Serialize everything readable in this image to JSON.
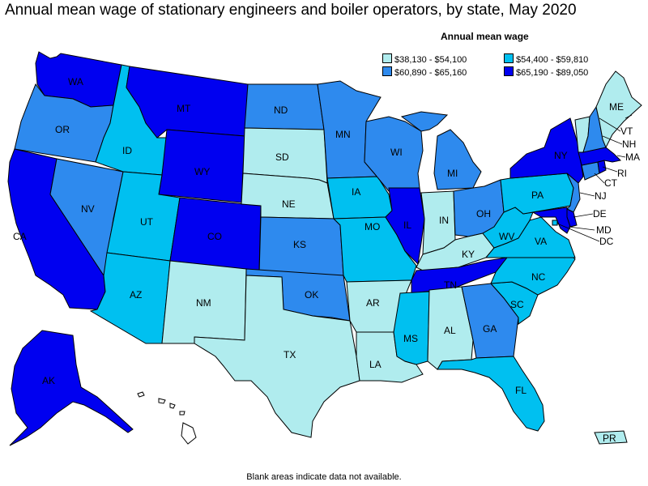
{
  "title": "Annual mean wage of stationary engineers and boiler operators, by state, May 2020",
  "legend": {
    "title": "Annual mean wage",
    "bins": [
      {
        "label": "$38,130 - $54,100",
        "color": "#b0ecee"
      },
      {
        "label": "$54,400 - $59,810",
        "color": "#00c0f0"
      },
      {
        "label": "$60,890 - $65,160",
        "color": "#2e8aee"
      },
      {
        "label": "$65,190 - $89,050",
        "color": "#0000f0"
      }
    ]
  },
  "footnote": "Blank areas indicate data not available.",
  "states": [
    {
      "abbr": "WA",
      "bin": 3
    },
    {
      "abbr": "OR",
      "bin": 2
    },
    {
      "abbr": "CA",
      "bin": 3
    },
    {
      "abbr": "NV",
      "bin": 2
    },
    {
      "abbr": "ID",
      "bin": 1
    },
    {
      "abbr": "MT",
      "bin": 3
    },
    {
      "abbr": "WY",
      "bin": 3
    },
    {
      "abbr": "UT",
      "bin": 1
    },
    {
      "abbr": "AZ",
      "bin": 1
    },
    {
      "abbr": "CO",
      "bin": 3
    },
    {
      "abbr": "NM",
      "bin": 0
    },
    {
      "abbr": "ND",
      "bin": 2
    },
    {
      "abbr": "SD",
      "bin": 0
    },
    {
      "abbr": "NE",
      "bin": 0
    },
    {
      "abbr": "KS",
      "bin": 2
    },
    {
      "abbr": "OK",
      "bin": 2
    },
    {
      "abbr": "TX",
      "bin": 0
    },
    {
      "abbr": "MN",
      "bin": 2
    },
    {
      "abbr": "IA",
      "bin": 1
    },
    {
      "abbr": "MO",
      "bin": 1
    },
    {
      "abbr": "AR",
      "bin": 0
    },
    {
      "abbr": "LA",
      "bin": 0
    },
    {
      "abbr": "WI",
      "bin": 2
    },
    {
      "abbr": "IL",
      "bin": 3
    },
    {
      "abbr": "MI",
      "bin": 2
    },
    {
      "abbr": "IN",
      "bin": 0
    },
    {
      "abbr": "OH",
      "bin": 2
    },
    {
      "abbr": "KY",
      "bin": 0
    },
    {
      "abbr": "TN",
      "bin": 3
    },
    {
      "abbr": "MS",
      "bin": 1
    },
    {
      "abbr": "AL",
      "bin": 0
    },
    {
      "abbr": "GA",
      "bin": 2
    },
    {
      "abbr": "FL",
      "bin": 1
    },
    {
      "abbr": "SC",
      "bin": 1
    },
    {
      "abbr": "NC",
      "bin": 1
    },
    {
      "abbr": "VA",
      "bin": 1
    },
    {
      "abbr": "WV",
      "bin": 1
    },
    {
      "abbr": "PA",
      "bin": 1
    },
    {
      "abbr": "NY",
      "bin": 3
    },
    {
      "abbr": "VT",
      "bin": 0
    },
    {
      "abbr": "NH",
      "bin": 2
    },
    {
      "abbr": "ME",
      "bin": 0
    },
    {
      "abbr": "MA",
      "bin": 3
    },
    {
      "abbr": "RI",
      "bin": 3
    },
    {
      "abbr": "CT",
      "bin": 2
    },
    {
      "abbr": "NJ",
      "bin": 2
    },
    {
      "abbr": "DE",
      "bin": 3
    },
    {
      "abbr": "MD",
      "bin": 3
    },
    {
      "abbr": "DC",
      "bin": 1
    },
    {
      "abbr": "AK",
      "bin": 3
    },
    {
      "abbr": "HI",
      "bin": null
    },
    {
      "abbr": "PR",
      "bin": 0
    }
  ]
}
